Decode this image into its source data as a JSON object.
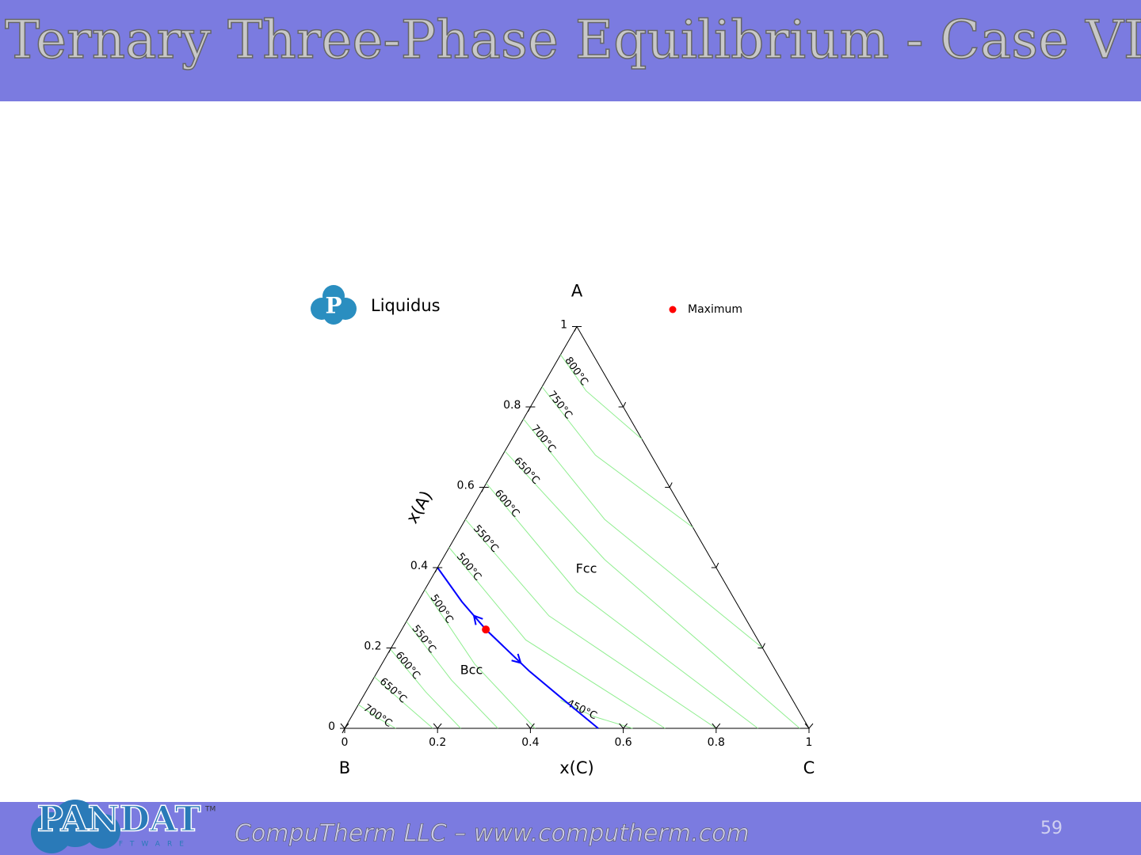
{
  "slide": {
    "title": "Ternary Three-Phase Equilibrium - Case VI",
    "footer": "CompuTherm LLC – www.computherm.com",
    "page_number": "59",
    "logo_text": "PANDAT",
    "logo_subtext": "SOFTWARE",
    "logo_tm": "TM"
  },
  "chart_data": {
    "type": "ternary",
    "title": "Liquidus",
    "logo_letter": "P",
    "vertices": {
      "top": "A",
      "left": "B",
      "right": "C"
    },
    "ylabel": "x(A)",
    "xlabel": "x(C)",
    "ylim": [
      0,
      1
    ],
    "yticks": [
      0,
      0.2,
      0.4,
      0.6,
      0.8,
      1
    ],
    "xlim": [
      0,
      1
    ],
    "xticks": [
      0,
      0.2,
      0.4,
      0.6,
      0.8,
      1
    ],
    "right_ticks": [
      0.2,
      0.4,
      0.6,
      0.8
    ],
    "regions": [
      "Fcc",
      "Bcc"
    ],
    "contour_color": "#90ee90",
    "series": [
      {
        "name": "800°C",
        "c": [
          0,
          0.1,
          0.28
        ],
        "a": [
          0.93,
          0.84,
          0.72
        ]
      },
      {
        "name": "750°C",
        "c": [
          0,
          0.2,
          0.5
        ],
        "a": [
          0.85,
          0.68,
          0.5
        ]
      },
      {
        "name": "700°C",
        "c": [
          0,
          0.3,
          0.8
        ],
        "a": [
          0.77,
          0.52,
          0.2
        ]
      },
      {
        "name": "650°C",
        "c": [
          0,
          0.35,
          0.98
        ],
        "a": [
          0.69,
          0.42,
          0
        ]
      },
      {
        "name": "600°C",
        "c": [
          0,
          0.33,
          0.89
        ],
        "a": [
          0.61,
          0.34,
          0
        ]
      },
      {
        "name": "550°C",
        "c": [
          0,
          0.3,
          0.8
        ],
        "a": [
          0.52,
          0.28,
          0
        ]
      },
      {
        "name": "500°C",
        "c": [
          0,
          0.28,
          0.69
        ],
        "a": [
          0.45,
          0.22,
          0
        ]
      },
      {
        "name": "500°C",
        "c": [
          0,
          0.2,
          0.41
        ],
        "a": [
          0.345,
          0.16,
          0
        ]
      },
      {
        "name": "550°C",
        "c": [
          0,
          0.17,
          0.33
        ],
        "a": [
          0.266,
          0.12,
          0
        ]
      },
      {
        "name": "600°C",
        "c": [
          0,
          0.13,
          0.25
        ],
        "a": [
          0.197,
          0.09,
          0
        ]
      },
      {
        "name": "650°C",
        "c": [
          0,
          0.1,
          0.19
        ],
        "a": [
          0.128,
          0.06,
          0
        ]
      },
      {
        "name": "700°C",
        "c": [
          0,
          0.06,
          0.11
        ],
        "a": [
          0.059,
          0.025,
          0
        ]
      },
      {
        "name": "450°C",
        "c": [
          0.43,
          0.52,
          0.62
        ],
        "a": [
          0.07,
          0.03,
          0
        ]
      }
    ],
    "univariant": {
      "color": "#0000ff",
      "c": [
        0,
        0.095,
        0.181,
        0.327,
        0.433,
        0.546
      ],
      "a": [
        0.4,
        0.315,
        0.246,
        0.142,
        0.073,
        0
      ]
    },
    "maximum": {
      "name": "Maximum",
      "color": "#ff0000",
      "c": 0.181,
      "a": 0.246
    }
  }
}
